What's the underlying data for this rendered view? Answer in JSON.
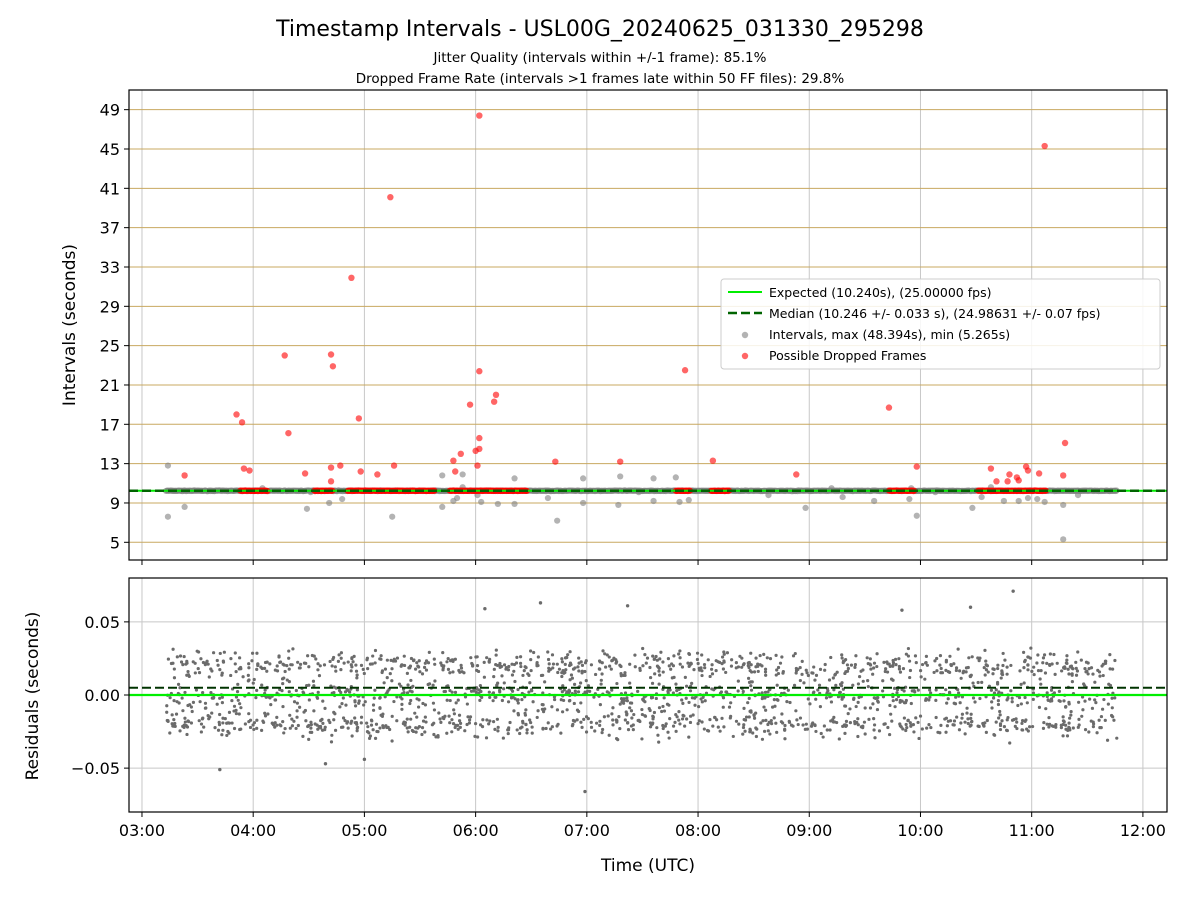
{
  "figure": {
    "title": "Timestamp Intervals - USL00G_20240625_031330_295298",
    "subtitle_1": "Jitter Quality (intervals within +/-1 frame): 85.1%",
    "subtitle_2": "Dropped Frame Rate (intervals >1 frames late within 50 FF files): 29.8%"
  },
  "chart_data": [
    {
      "type": "scatter",
      "panel": "intervals",
      "ylabel": "Intervals (seconds)",
      "x_unit": "time (UTC)",
      "xlim": [
        "02:53",
        "12:13"
      ],
      "ylim": [
        3.2,
        51.0
      ],
      "yticks": [
        5,
        9,
        13,
        17,
        21,
        25,
        29,
        33,
        37,
        41,
        45,
        49
      ],
      "grid": true,
      "legend_position": "center-right",
      "legend": {
        "expected": "Expected (10.240s), (25.00000 fps)",
        "median": "Median (10.246 +/- 0.033 s), (24.98631 +/- 0.07 fps)",
        "intervals": "Intervals, max (48.394s), min (5.265s)",
        "dropped": "Possible Dropped Frames"
      },
      "expected_line": 10.24,
      "median_line": 10.246,
      "time_range": [
        "03:13",
        "11:46"
      ],
      "intervals_summary": {
        "max": 48.394,
        "min": 5.265,
        "typical": 10.24
      },
      "intervals_outliers": [
        [
          "03:14",
          12.8
        ],
        [
          "03:14",
          7.6
        ],
        [
          "03:23",
          8.6
        ],
        [
          "04:05",
          10.5
        ],
        [
          "04:31",
          10.1
        ],
        [
          "04:29",
          8.4
        ],
        [
          "04:41",
          9.0
        ],
        [
          "04:48",
          9.4
        ],
        [
          "05:15",
          7.6
        ],
        [
          "05:22",
          10.2
        ],
        [
          "05:42",
          11.8
        ],
        [
          "05:42",
          8.6
        ],
        [
          "05:48",
          9.2
        ],
        [
          "05:50",
          9.5
        ],
        [
          "05:53",
          10.6
        ],
        [
          "05:53",
          11.9
        ],
        [
          "06:01",
          9.8
        ],
        [
          "06:03",
          9.1
        ],
        [
          "06:12",
          8.9
        ],
        [
          "06:21",
          11.5
        ],
        [
          "06:21",
          8.9
        ],
        [
          "06:38",
          10.2
        ],
        [
          "06:39",
          9.5
        ],
        [
          "06:44",
          7.2
        ],
        [
          "06:58",
          11.5
        ],
        [
          "06:58",
          9.0
        ],
        [
          "07:18",
          11.7
        ],
        [
          "07:17",
          8.8
        ],
        [
          "07:28",
          10.1
        ],
        [
          "07:36",
          11.5
        ],
        [
          "07:36",
          9.2
        ],
        [
          "07:48",
          11.6
        ],
        [
          "07:50",
          9.1
        ],
        [
          "07:55",
          9.3
        ],
        [
          "08:38",
          9.8
        ],
        [
          "08:58",
          8.5
        ],
        [
          "09:12",
          10.5
        ],
        [
          "09:18",
          9.6
        ],
        [
          "09:35",
          9.2
        ],
        [
          "09:54",
          9.4
        ],
        [
          "09:55",
          10.5
        ],
        [
          "09:58",
          7.7
        ],
        [
          "10:08",
          10.1
        ],
        [
          "10:28",
          8.5
        ],
        [
          "10:33",
          9.6
        ],
        [
          "10:38",
          10.6
        ],
        [
          "10:45",
          9.2
        ],
        [
          "10:53",
          9.2
        ],
        [
          "10:58",
          9.5
        ],
        [
          "11:03",
          9.4
        ],
        [
          "11:07",
          9.1
        ],
        [
          "11:17",
          8.8
        ],
        [
          "11:17",
          5.3
        ],
        [
          "11:25",
          9.8
        ]
      ],
      "dropped_frame_clusters": [
        [
          "03:53",
          "04:08",
          10.24
        ],
        [
          "04:33",
          "04:43",
          10.24
        ],
        [
          "04:51",
          "05:38",
          10.24
        ],
        [
          "05:46",
          "06:28",
          10.24
        ],
        [
          "07:48",
          "07:56",
          10.24
        ],
        [
          "08:07",
          "08:17",
          10.24
        ],
        [
          "09:43",
          "09:57",
          10.24
        ],
        [
          "10:31",
          "11:08",
          10.24
        ]
      ],
      "dropped_frames": [
        [
          "03:23",
          11.8
        ],
        [
          "03:51",
          18.0
        ],
        [
          "03:54",
          17.2
        ],
        [
          "03:55",
          12.5
        ],
        [
          "03:58",
          12.3
        ],
        [
          "04:17",
          24.0
        ],
        [
          "04:19",
          16.1
        ],
        [
          "04:28",
          12.0
        ],
        [
          "04:42",
          24.1
        ],
        [
          "04:43",
          22.9
        ],
        [
          "04:42",
          12.6
        ],
        [
          "04:42",
          11.2
        ],
        [
          "04:47",
          12.8
        ],
        [
          "04:53",
          31.9
        ],
        [
          "04:58",
          12.2
        ],
        [
          "04:57",
          17.6
        ],
        [
          "05:07",
          11.9
        ],
        [
          "05:14",
          40.1
        ],
        [
          "05:16",
          12.8
        ],
        [
          "05:48",
          13.3
        ],
        [
          "05:49",
          12.2
        ],
        [
          "05:52",
          14.0
        ],
        [
          "05:57",
          19.0
        ],
        [
          "06:00",
          14.3
        ],
        [
          "06:02",
          14.5
        ],
        [
          "06:02",
          15.6
        ],
        [
          "06:01",
          12.8
        ],
        [
          "06:02",
          22.4
        ],
        [
          "06:02",
          48.4
        ],
        [
          "06:10",
          19.3
        ],
        [
          "06:11",
          20.0
        ],
        [
          "06:43",
          13.2
        ],
        [
          "07:18",
          13.2
        ],
        [
          "07:53",
          22.5
        ],
        [
          "08:08",
          13.3
        ],
        [
          "08:53",
          11.9
        ],
        [
          "09:43",
          18.7
        ],
        [
          "09:58",
          12.7
        ],
        [
          "10:38",
          12.5
        ],
        [
          "10:41",
          11.2
        ],
        [
          "10:47",
          11.2
        ],
        [
          "10:48",
          11.9
        ],
        [
          "10:52",
          11.6
        ],
        [
          "10:53",
          11.3
        ],
        [
          "10:57",
          12.7
        ],
        [
          "10:58",
          12.3
        ],
        [
          "11:04",
          12.0
        ],
        [
          "11:07",
          45.3
        ],
        [
          "11:18",
          15.1
        ],
        [
          "11:17",
          11.8
        ]
      ],
      "colors": {
        "expected": "#00ee00",
        "median": "#006400",
        "intervals": "#808080",
        "dropped": "#ff0000",
        "hgrid": "#c8a860",
        "vgrid": "#c8c8c8"
      }
    },
    {
      "type": "scatter",
      "panel": "residuals",
      "xlabel": "Time (UTC)",
      "ylabel": "Residuals (seconds)",
      "xlim": [
        "02:53",
        "12:13"
      ],
      "ylim": [
        -0.08,
        0.08
      ],
      "yticks": [
        0.05,
        0.0,
        -0.05
      ],
      "ytick_labels": [
        "0.05",
        "0.00",
        "−0.05"
      ],
      "xticks": [
        "03:00",
        "04:00",
        "05:00",
        "06:00",
        "07:00",
        "08:00",
        "09:00",
        "10:00",
        "11:00",
        "12:00"
      ],
      "grid": true,
      "expected_line": 0.0,
      "median_line": 0.005,
      "distribution": {
        "bands": [
          0.02,
          0.0,
          -0.02
        ],
        "spread": 0.03,
        "range": [
          -0.066,
          0.071
        ],
        "n_points": 2000
      },
      "notable_points": [
        [
          "03:42",
          -0.051
        ],
        [
          "04:39",
          -0.047
        ],
        [
          "05:00",
          -0.044
        ],
        [
          "06:59",
          -0.066
        ],
        [
          "10:50",
          0.071
        ],
        [
          "06:05",
          0.059
        ],
        [
          "06:35",
          0.063
        ],
        [
          "07:22",
          0.061
        ],
        [
          "09:50",
          0.058
        ],
        [
          "10:27",
          0.06
        ]
      ],
      "colors": {
        "points": "#6b6b6b",
        "expected": "#00ee00",
        "median": "#003300",
        "grid": "#c8c8c8"
      }
    }
  ]
}
